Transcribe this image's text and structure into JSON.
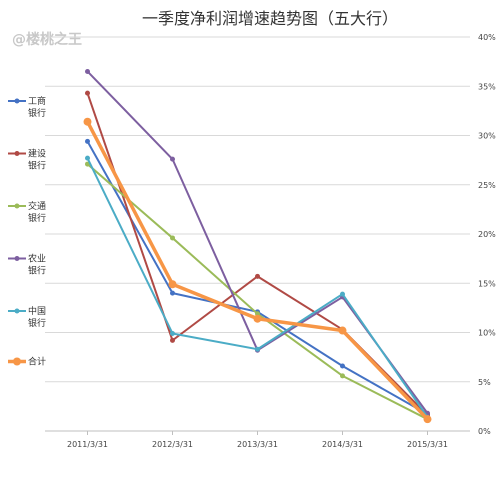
{
  "chart_data": {
    "type": "line",
    "title": "一季度净利润增速趋势图（五大行）",
    "watermark": "@楼桃之王",
    "categories": [
      "2011/3/31",
      "2012/3/31",
      "2013/3/31",
      "2014/3/31",
      "2015/3/31"
    ],
    "y_tick_labels": [
      "0%",
      "5%",
      "10%",
      "15%",
      "20%",
      "25%",
      "30%",
      "35%",
      "40%"
    ],
    "ylim": [
      0,
      40
    ],
    "y_unit": "%",
    "grid": true,
    "legend_position": "left",
    "series": [
      {
        "name_lines": [
          "工商",
          "银行"
        ],
        "color": "#4472c4",
        "values": [
          29.4,
          14.0,
          12.1,
          6.6,
          1.7
        ]
      },
      {
        "name_lines": [
          "建设",
          "银行"
        ],
        "color": "#b04a45",
        "values": [
          34.3,
          9.2,
          15.7,
          10.3,
          1.6
        ]
      },
      {
        "name_lines": [
          "交通",
          "银行"
        ],
        "color": "#9bbb59",
        "values": [
          27.1,
          19.6,
          11.9,
          5.6,
          1.2
        ]
      },
      {
        "name_lines": [
          "农业",
          "银行"
        ],
        "color": "#7d5fa0",
        "values": [
          36.5,
          27.6,
          8.2,
          13.6,
          1.8
        ]
      },
      {
        "name_lines": [
          "中国",
          "银行"
        ],
        "color": "#4bacc6",
        "values": [
          27.7,
          9.9,
          8.3,
          13.9,
          1.4
        ]
      },
      {
        "name_lines": [
          "合计"
        ],
        "color": "#f79646",
        "values": [
          31.4,
          14.9,
          11.4,
          10.2,
          1.2
        ]
      }
    ]
  }
}
